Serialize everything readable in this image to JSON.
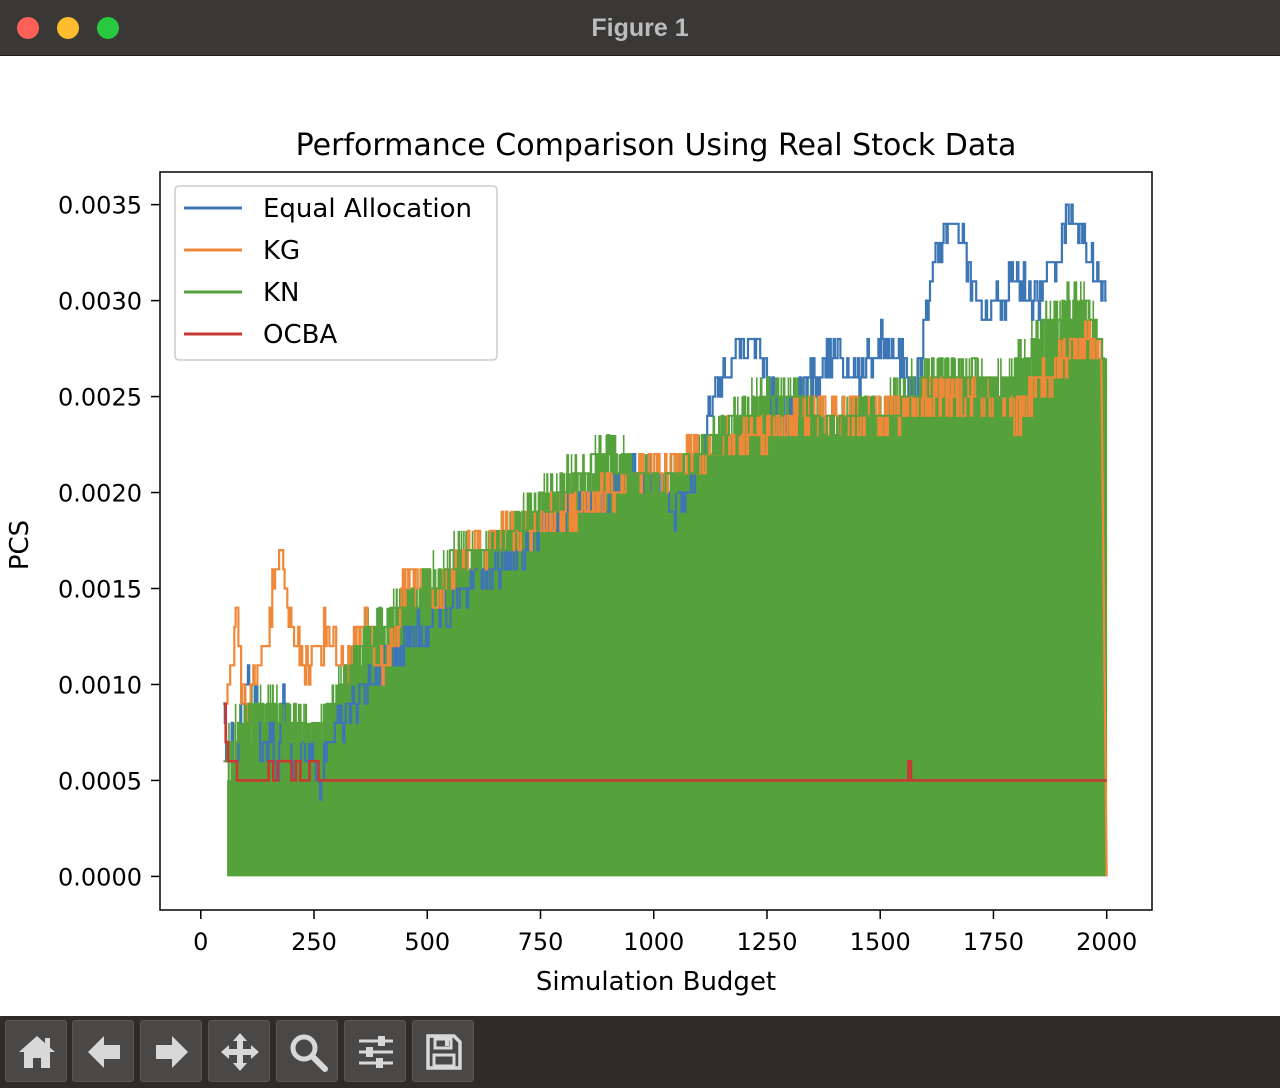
{
  "window": {
    "title": "Figure 1"
  },
  "toolbar": {
    "buttons": [
      {
        "name": "home-button",
        "icon": "home-icon"
      },
      {
        "name": "back-button",
        "icon": "arrow-left-icon"
      },
      {
        "name": "forward-button",
        "icon": "arrow-right-icon"
      },
      {
        "name": "pan-button",
        "icon": "move-icon"
      },
      {
        "name": "zoom-button",
        "icon": "magnifier-icon"
      },
      {
        "name": "configure-subplots-button",
        "icon": "sliders-icon"
      },
      {
        "name": "save-button",
        "icon": "floppy-disk-icon"
      }
    ]
  },
  "chart_data": {
    "type": "line",
    "title": "Performance Comparison Using Real Stock Data",
    "xlabel": "Simulation Budget",
    "ylabel": "PCS",
    "xlim": [
      -90,
      2100
    ],
    "ylim": [
      -0.000175,
      0.00367
    ],
    "xticks": [
      0,
      250,
      500,
      750,
      1000,
      1250,
      1500,
      1750,
      2000
    ],
    "xtick_labels": [
      "0",
      "250",
      "500",
      "750",
      "1000",
      "1250",
      "1500",
      "1750",
      "2000"
    ],
    "yticks": [
      0,
      0.0005,
      0.001,
      0.0015,
      0.002,
      0.0025,
      0.003,
      0.0035
    ],
    "ytick_labels": [
      "0.0000",
      "0.0005",
      "0.0010",
      "0.0015",
      "0.0020",
      "0.0025",
      "0.0030",
      "0.0035"
    ],
    "legend_position": "top-left",
    "grid": false,
    "series": [
      {
        "name": "Equal Allocation",
        "color": "#3d76b5",
        "x": [
          50,
          60,
          70,
          80,
          90,
          100,
          110,
          120,
          130,
          140,
          150,
          160,
          170,
          180,
          190,
          200,
          210,
          220,
          230,
          240,
          250,
          260,
          270,
          300,
          350,
          400,
          450,
          500,
          550,
          600,
          650,
          700,
          750,
          800,
          850,
          900,
          950,
          1000,
          1050,
          1080,
          1100,
          1120,
          1150,
          1180,
          1200,
          1230,
          1260,
          1300,
          1350,
          1400,
          1450,
          1500,
          1550,
          1580,
          1600,
          1620,
          1650,
          1680,
          1700,
          1730,
          1760,
          1800,
          1850,
          1880,
          1900,
          1920,
          1950,
          1980,
          2000
        ],
        "y": [
          0.0009,
          0.0006,
          0.0007,
          0.0006,
          0.0009,
          0.0011,
          0.001,
          0.0009,
          0.0007,
          0.0006,
          0.0008,
          0.0007,
          0.0006,
          0.001,
          0.0008,
          0.0006,
          0.0005,
          0.0007,
          0.0006,
          0.0007,
          0.0006,
          0.0005,
          0.0006,
          0.0008,
          0.0009,
          0.0011,
          0.0012,
          0.0013,
          0.0014,
          0.0015,
          0.0016,
          0.0017,
          0.0018,
          0.0019,
          0.0019,
          0.002,
          0.0021,
          0.0021,
          0.0019,
          0.002,
          0.0022,
          0.0024,
          0.0026,
          0.0028,
          0.0027,
          0.0028,
          0.0025,
          0.0024,
          0.0026,
          0.0027,
          0.0026,
          0.0028,
          0.0027,
          0.0025,
          0.003,
          0.0032,
          0.0034,
          0.0033,
          0.0031,
          0.0029,
          0.003,
          0.0031,
          0.003,
          0.0032,
          0.0033,
          0.0035,
          0.0033,
          0.0031,
          0.003
        ]
      },
      {
        "name": "KG",
        "color": "#f0883a",
        "x": [
          50,
          60,
          70,
          80,
          90,
          100,
          120,
          140,
          160,
          180,
          200,
          220,
          240,
          260,
          280,
          300,
          320,
          340,
          360,
          380,
          400,
          420,
          440,
          460,
          480,
          500,
          520,
          560,
          600,
          700,
          800,
          900,
          1000,
          1100,
          1200,
          1300,
          1400,
          1500,
          1600,
          1700,
          1800,
          1900,
          1950,
          1990,
          2000
        ],
        "y": [
          0.0009,
          0.001,
          0.0012,
          0.0013,
          0.001,
          0.0009,
          0.001,
          0.0012,
          0.0015,
          0.0016,
          0.0013,
          0.0012,
          0.0011,
          0.0012,
          0.0013,
          0.0012,
          0.0011,
          0.0012,
          0.0013,
          0.0012,
          0.0011,
          0.0012,
          0.0014,
          0.0016,
          0.0015,
          0.0016,
          0.0014,
          0.0016,
          0.0017,
          0.0018,
          0.0019,
          0.002,
          0.0021,
          0.0022,
          0.0023,
          0.0024,
          0.0024,
          0.0024,
          0.0025,
          0.0025,
          0.0024,
          0.0027,
          0.0028,
          0.0028,
          0
        ]
      },
      {
        "name": "KN",
        "color": "#55a13b",
        "x": [
          50,
          100,
          150,
          200,
          250,
          300,
          350,
          400,
          450,
          500,
          550,
          600,
          650,
          700,
          750,
          800,
          850,
          900,
          950,
          1000,
          1050,
          1100,
          1150,
          1200,
          1250,
          1300,
          1350,
          1400,
          1450,
          1500,
          1550,
          1600,
          1650,
          1700,
          1750,
          1800,
          1850,
          1900,
          1950,
          2000
        ],
        "y": [
          0.0006,
          0.0008,
          0.0009,
          0.0008,
          0.0007,
          0.0009,
          0.0012,
          0.0013,
          0.0014,
          0.0015,
          0.0016,
          0.0017,
          0.0017,
          0.0018,
          0.0019,
          0.002,
          0.0021,
          0.0022,
          0.0021,
          0.002,
          0.0021,
          0.0022,
          0.0023,
          0.0024,
          0.0025,
          0.0025,
          0.0024,
          0.0023,
          0.0024,
          0.0024,
          0.0025,
          0.0026,
          0.0026,
          0.0026,
          0.0025,
          0.0026,
          0.0028,
          0.0029,
          0.003,
          0.0026
        ]
      },
      {
        "name": "OCBA",
        "color": "#c63a33",
        "x": [
          50,
          55,
          60,
          70,
          80,
          150,
          160,
          170,
          200,
          210,
          220,
          240,
          260,
          300,
          1560,
          1562,
          1565,
          1568,
          2000
        ],
        "y": [
          0.0009,
          0.0007,
          0.0006,
          0.0006,
          0.0005,
          0.0006,
          0.0005,
          0.0006,
          0.0005,
          0.0006,
          0.0005,
          0.0006,
          0.0005,
          0.0005,
          0.0005,
          0.0006,
          0.0006,
          0.0005,
          0.0005
        ]
      }
    ]
  }
}
